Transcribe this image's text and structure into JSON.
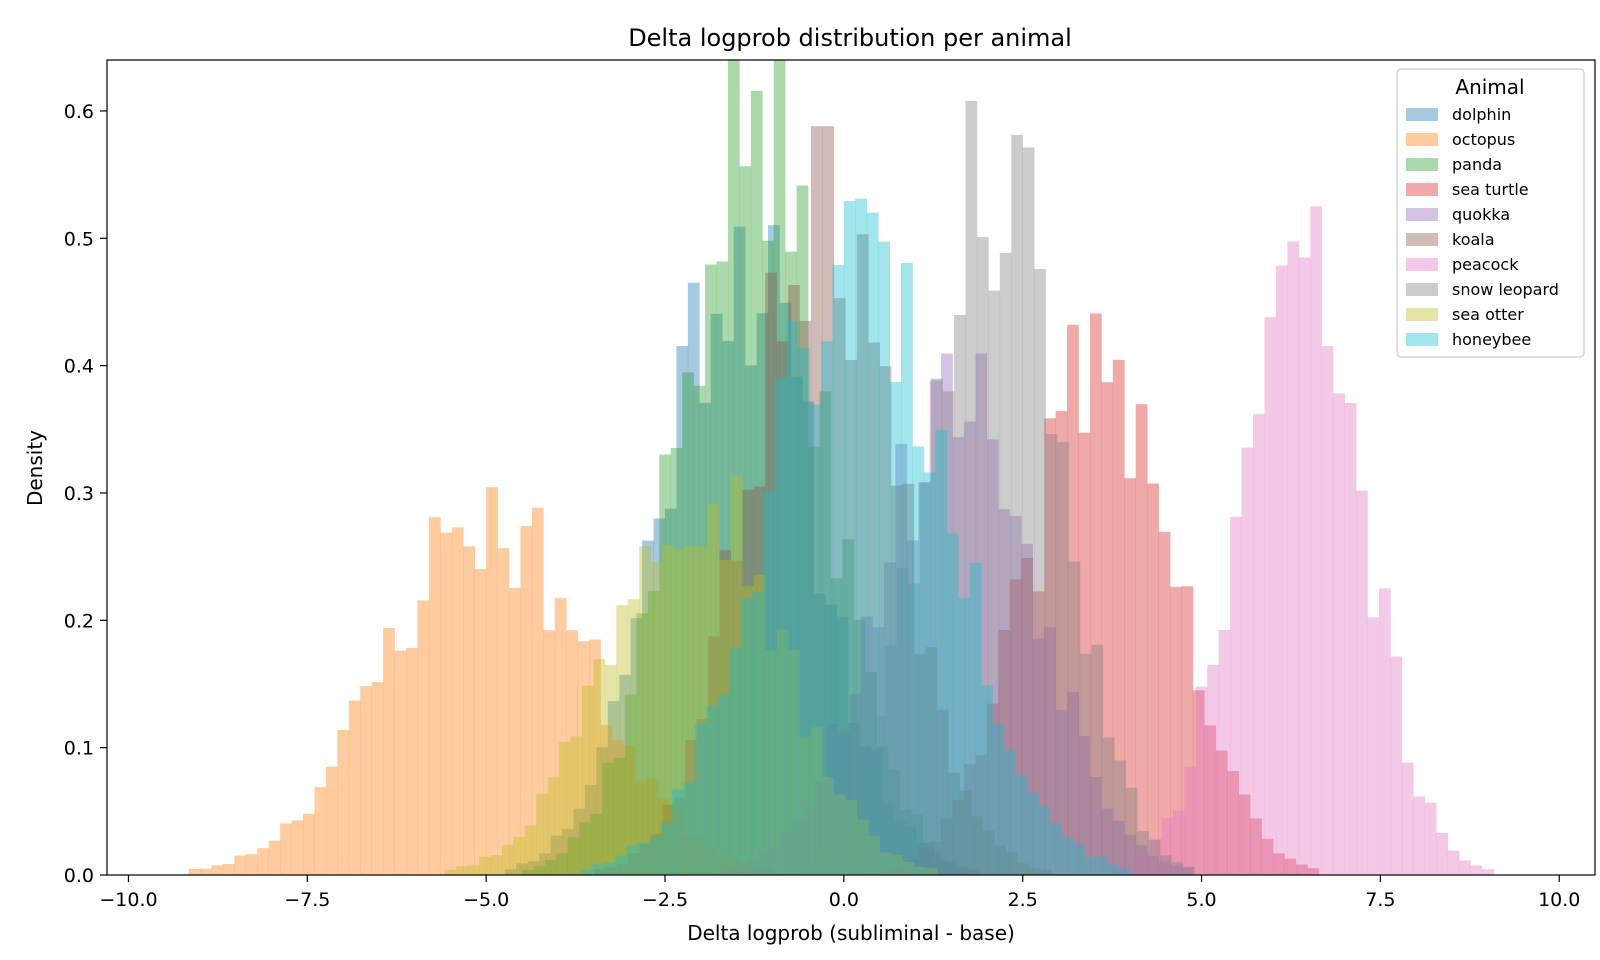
{
  "chart_data": {
    "type": "bar",
    "chart_kind": "histogram",
    "title": "Delta logprob distribution per animal",
    "xlabel": "Delta logprob (subliminal - base)",
    "ylabel": "Density",
    "xlim": [
      -10.3,
      10.5
    ],
    "ylim": [
      0,
      0.64
    ],
    "xticks": [
      -10,
      -7.5,
      -5,
      -2.5,
      0,
      2.5,
      5,
      7.5,
      10
    ],
    "xtick_labels": [
      "−10.0",
      "−7.5",
      "−5.0",
      "−2.5",
      "0.0",
      "2.5",
      "5.0",
      "7.5",
      "10.0"
    ],
    "yticks": [
      0,
      0.1,
      0.2,
      0.3,
      0.4,
      0.5,
      0.6
    ],
    "ytick_labels": [
      "0.0",
      "0.1",
      "0.2",
      "0.3",
      "0.4",
      "0.5",
      "0.6"
    ],
    "grid": false,
    "legend": {
      "title": "Animal",
      "placement": "top-right"
    },
    "bar_opacity": 0.4,
    "series": [
      {
        "name": "dolphin",
        "color": "#1f77b4",
        "mean": -1.5,
        "sd": 1.05,
        "peak": 0.51,
        "seed": 11
      },
      {
        "name": "octopus",
        "color": "#ff7f0e",
        "mean": -5.0,
        "sd": 1.4,
        "peak": 0.29,
        "seed": 23
      },
      {
        "name": "panda",
        "color": "#2ca02c",
        "mean": -1.3,
        "sd": 1.0,
        "peak": 0.61,
        "seed": 37
      },
      {
        "name": "sea turtle",
        "color": "#d62728",
        "mean": 3.6,
        "sd": 1.0,
        "peak": 0.42,
        "seed": 41
      },
      {
        "name": "quokka",
        "color": "#9467bd",
        "mean": 1.6,
        "sd": 1.1,
        "peak": 0.39,
        "seed": 53
      },
      {
        "name": "koala",
        "color": "#8c564b",
        "mean": -0.3,
        "sd": 1.0,
        "peak": 0.56,
        "seed": 67
      },
      {
        "name": "peacock",
        "color": "#e377c2",
        "mean": 6.4,
        "sd": 0.85,
        "peak": 0.5,
        "seed": 71
      },
      {
        "name": "snow leopard",
        "color": "#7f7f7f",
        "mean": 2.1,
        "sd": 0.9,
        "peak": 0.58,
        "seed": 83
      },
      {
        "name": "sea otter",
        "color": "#bcbd22",
        "mean": -2.1,
        "sd": 1.15,
        "peak": 0.33,
        "seed": 97
      },
      {
        "name": "honeybee",
        "color": "#17becf",
        "mean": 0.2,
        "sd": 1.25,
        "peak": 0.51,
        "seed": 101
      }
    ]
  }
}
